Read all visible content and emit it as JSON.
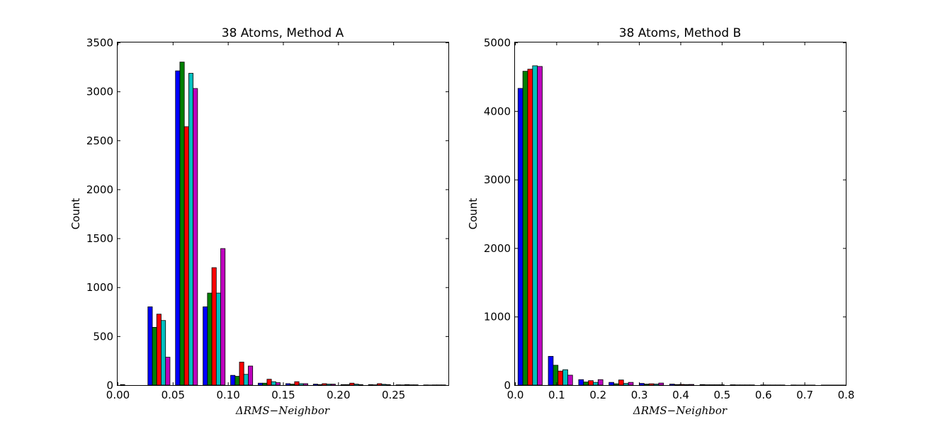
{
  "chart_data": [
    {
      "type": "bar",
      "title": "38 Atoms, Method A",
      "xlabel": "ΔRMS−Neighbor",
      "ylabel": "Count",
      "xlim": [
        0.0,
        0.3
      ],
      "ylim": [
        0,
        3500
      ],
      "xticks": [
        0.0,
        0.05,
        0.1,
        0.15,
        0.2,
        0.25
      ],
      "xtick_labels": [
        "0.00",
        "0.05",
        "0.10",
        "0.15",
        "0.20",
        "0.25"
      ],
      "yticks": [
        0,
        500,
        1000,
        1500,
        2000,
        2500,
        3000,
        3500
      ],
      "ytick_labels": [
        "0",
        "500",
        "1000",
        "1500",
        "2000",
        "2500",
        "3000",
        "3500"
      ],
      "grid": false,
      "bin_width": 0.025,
      "bins": [
        0.0,
        0.025,
        0.05,
        0.075,
        0.1,
        0.125,
        0.15,
        0.175,
        0.2,
        0.225,
        0.25,
        0.275
      ],
      "series": [
        {
          "color": "#0000ff",
          "values": [
            5,
            800,
            3210,
            800,
            100,
            20,
            15,
            10,
            5,
            5,
            3,
            2
          ]
        },
        {
          "color": "#007f00",
          "values": [
            0,
            590,
            3300,
            940,
            90,
            20,
            10,
            5,
            5,
            3,
            2,
            1
          ]
        },
        {
          "color": "#ff0000",
          "values": [
            0,
            725,
            2640,
            1200,
            235,
            60,
            35,
            15,
            20,
            15,
            5,
            2
          ]
        },
        {
          "color": "#00bfbf",
          "values": [
            0,
            660,
            3185,
            940,
            110,
            35,
            15,
            10,
            10,
            8,
            3,
            2
          ]
        },
        {
          "color": "#bf00bf",
          "values": [
            0,
            285,
            3030,
            1395,
            195,
            25,
            15,
            10,
            5,
            5,
            3,
            2
          ]
        }
      ]
    },
    {
      "type": "bar",
      "title": "38 Atoms, Method B",
      "xlabel": "ΔRMS−Neighbor",
      "ylabel": "Count",
      "xlim": [
        0.0,
        0.8
      ],
      "ylim": [
        0,
        5000
      ],
      "xticks": [
        0.0,
        0.1,
        0.2,
        0.3,
        0.4,
        0.5,
        0.6,
        0.7,
        0.8
      ],
      "xtick_labels": [
        "0.0",
        "0.1",
        "0.2",
        "0.3",
        "0.4",
        "0.5",
        "0.6",
        "0.7",
        "0.8"
      ],
      "yticks": [
        0,
        1000,
        2000,
        3000,
        4000,
        5000
      ],
      "ytick_labels": [
        "0",
        "1000",
        "2000",
        "3000",
        "4000",
        "5000"
      ],
      "grid": false,
      "bin_width": 0.0733,
      "bins": [
        0.0,
        0.0733,
        0.1467,
        0.22,
        0.2933,
        0.3667,
        0.44,
        0.5133,
        0.5867,
        0.66,
        0.7333
      ],
      "series": [
        {
          "color": "#0000ff",
          "values": [
            4330,
            420,
            80,
            40,
            25,
            15,
            8,
            5,
            3,
            2,
            1
          ]
        },
        {
          "color": "#007f00",
          "values": [
            4580,
            290,
            45,
            20,
            15,
            8,
            5,
            3,
            2,
            1,
            1
          ]
        },
        {
          "color": "#ff0000",
          "values": [
            4610,
            205,
            65,
            75,
            20,
            10,
            5,
            3,
            2,
            1,
            1
          ]
        },
        {
          "color": "#00bfbf",
          "values": [
            4660,
            225,
            40,
            25,
            15,
            8,
            5,
            3,
            2,
            1,
            1
          ]
        },
        {
          "color": "#bf00bf",
          "values": [
            4650,
            145,
            80,
            40,
            30,
            10,
            5,
            3,
            2,
            1,
            1
          ]
        }
      ]
    }
  ]
}
